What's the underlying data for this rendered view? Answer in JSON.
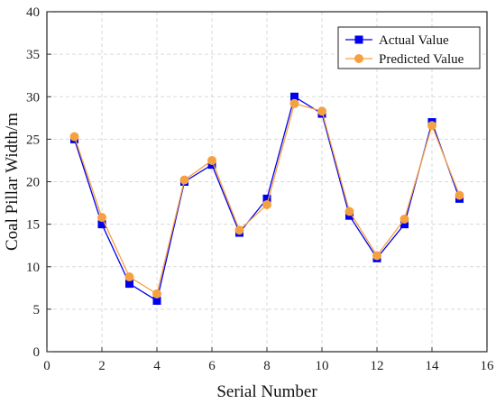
{
  "chart_data": {
    "type": "line",
    "title": "",
    "xlabel": "Serial Number",
    "ylabel": "Coal Pillar Width/m",
    "xlim": [
      0,
      16
    ],
    "ylim": [
      0,
      40
    ],
    "xticks": [
      0,
      2,
      4,
      6,
      8,
      10,
      12,
      14,
      16
    ],
    "yticks": [
      0,
      5,
      10,
      15,
      20,
      25,
      30,
      35,
      40
    ],
    "grid": true,
    "legend_position": "top-right",
    "x": [
      1,
      2,
      3,
      4,
      5,
      6,
      7,
      8,
      9,
      10,
      11,
      12,
      13,
      14,
      15
    ],
    "series": [
      {
        "name": "Actual Value",
        "marker": "square",
        "color": "#0000ee",
        "values": [
          25,
          15,
          8,
          6,
          20,
          22,
          14,
          18,
          30,
          28,
          16,
          11,
          15,
          27,
          18
        ]
      },
      {
        "name": "Predicted Value",
        "marker": "circle",
        "color": "#f5a142",
        "values": [
          25.3,
          15.8,
          8.8,
          6.8,
          20.2,
          22.5,
          14.3,
          17.3,
          29.2,
          28.3,
          16.5,
          11.3,
          15.6,
          26.6,
          18.4
        ]
      }
    ]
  }
}
